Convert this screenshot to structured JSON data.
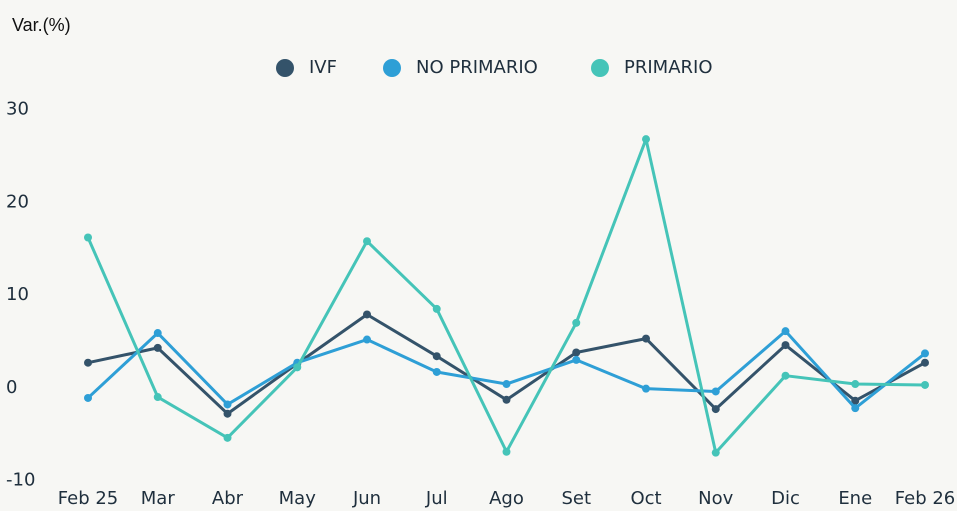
{
  "chart_data": {
    "type": "line",
    "y_label": "Var.(%)",
    "categories": [
      "Feb 25",
      "Mar",
      "Abr",
      "May",
      "Jun",
      "Jul",
      "Ago",
      "Set",
      "Oct",
      "Nov",
      "Dic",
      "Ene",
      "Feb 26"
    ],
    "series": [
      {
        "name": "IVF",
        "color": "#34536a",
        "values": [
          2.7,
          4.3,
          -2.8,
          2.6,
          7.9,
          3.4,
          -1.3,
          3.8,
          5.3,
          -2.3,
          4.6,
          -1.4,
          2.7
        ]
      },
      {
        "name": "NO PRIMARIO",
        "color": "#2e9fd6",
        "values": [
          -1.1,
          5.9,
          -1.8,
          2.7,
          5.2,
          1.7,
          0.4,
          3.0,
          -0.1,
          -0.4,
          6.1,
          -2.2,
          3.7
        ]
      },
      {
        "name": "PRIMARIO",
        "color": "#45c4b8",
        "values": [
          16.2,
          -1.0,
          -5.4,
          2.2,
          15.8,
          8.5,
          -6.9,
          7.0,
          26.8,
          -7.0,
          1.3,
          0.4,
          0.3
        ]
      }
    ],
    "ylim": [
      -10,
      30
    ],
    "yticks": [
      -10,
      0,
      10,
      20,
      30
    ],
    "grid": false,
    "legend": "top"
  }
}
